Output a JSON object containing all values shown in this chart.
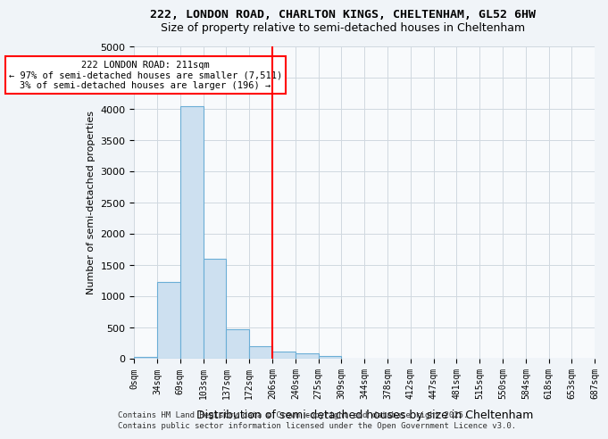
{
  "title1": "222, LONDON ROAD, CHARLTON KINGS, CHELTENHAM, GL52 6HW",
  "title2": "Size of property relative to semi-detached houses in Cheltenham",
  "xlabel": "Distribution of semi-detached houses by size in Cheltenham",
  "ylabel": "Number of semi-detached properties",
  "bin_labels": [
    "0sqm",
    "34sqm",
    "69sqm",
    "103sqm",
    "137sqm",
    "172sqm",
    "206sqm",
    "240sqm",
    "275sqm",
    "309sqm",
    "344sqm",
    "378sqm",
    "412sqm",
    "447sqm",
    "481sqm",
    "515sqm",
    "550sqm",
    "584sqm",
    "618sqm",
    "653sqm",
    "687sqm"
  ],
  "bin_values": [
    30,
    1230,
    4050,
    1600,
    470,
    200,
    120,
    80,
    50,
    0,
    0,
    0,
    0,
    0,
    0,
    0,
    0,
    0,
    0,
    0
  ],
  "bar_color": "#cde0f0",
  "bar_edge_color": "#6baed6",
  "vline_x": 6,
  "vline_color": "red",
  "annotation_text": "222 LONDON ROAD: 211sqm\n← 97% of semi-detached houses are smaller (7,511)\n3% of semi-detached houses are larger (196) →",
  "annotation_box_color": "red",
  "ylim": [
    0,
    5000
  ],
  "yticks": [
    0,
    500,
    1000,
    1500,
    2000,
    2500,
    3000,
    3500,
    4000,
    4500,
    5000
  ],
  "footer1": "Contains HM Land Registry data © Crown copyright and database right 2025.",
  "footer2": "Contains public sector information licensed under the Open Government Licence v3.0.",
  "bg_color": "#f0f4f8",
  "plot_bg_color": "#f8fafc",
  "grid_color": "#d0d8e0"
}
